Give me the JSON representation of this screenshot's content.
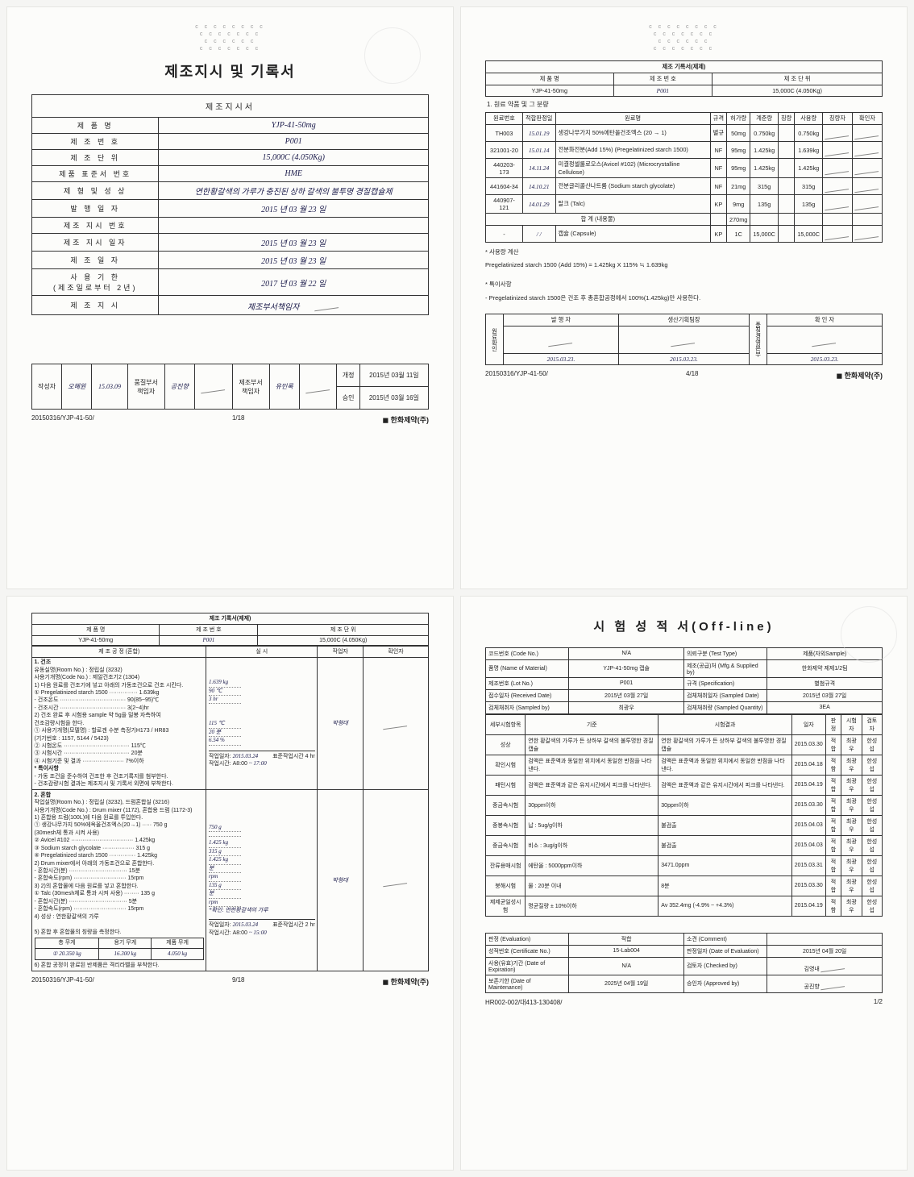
{
  "common": {
    "dots1": "c  c c c  c  c c c",
    "dots2": "c   c c c   c  c c",
    "dots3": "c   c   c c c  c",
    "brand": "한화제약(주)",
    "product": "YJP-41-50mg",
    "lot": "P001",
    "unit": "15,000C (4.050Kg)"
  },
  "p1": {
    "title": "제조지시 및 기록서",
    "inner_title": "제조지시서",
    "rows": [
      {
        "k": "제 품 명",
        "v": "YJP-41-50mg"
      },
      {
        "k": "제 조 번 호",
        "v": "P001"
      },
      {
        "k": "제 조 단 위",
        "v": "15,000C (4.050Kg)"
      },
      {
        "k": "제품 표준서 번호",
        "v": "HME"
      },
      {
        "k": "제 형 및 성 상",
        "v": "연한황갈색의 가루가 충진된 상하 갈색의 불투명 경질캡슐제"
      },
      {
        "k": "발 행 일 자",
        "v": "2015 년 03 월 23 일"
      },
      {
        "k": "제조 지시 번호",
        "v": ""
      },
      {
        "k": "제조 지시 일자",
        "v": "2015 년 03 월 23 일"
      },
      {
        "k": "제 조 일 자",
        "v": "2015 년 03 월 23 일"
      },
      {
        "k": "사 용 기 한\n(제조일로부터 2년)",
        "v": "2017 년 03 월 22 일"
      },
      {
        "k": "제 조 지 시",
        "v": "제조부서책임자"
      }
    ],
    "sig": {
      "작성자": "오혜원",
      "작성일": "15.03.09",
      "품질부서책임자": "공진향",
      "제조부서책임자": "유민록",
      "개정": "2015년 03월 11일",
      "승인": "2015년 03월 16일"
    },
    "footer_left": "20150316/YJP-41-50/",
    "page": "1/18"
  },
  "p2": {
    "title": "제조 기록서(제제)",
    "headers": [
      "제 품 명",
      "제 조 번 호",
      "제 조 단 위"
    ],
    "section": "1. 원료 약품 및 그 분량",
    "cols": [
      "원료번호",
      "적합판정일",
      "원료명",
      "규격",
      "허가량",
      "계준량",
      "칭량",
      "사용량",
      "칭량자",
      "확인자"
    ],
    "mats": [
      {
        "no": "TH003",
        "date": "15.01.19",
        "name": "생강나무가지 50%에탄올건조엑스 (20 → 1)",
        "spec": "별규",
        "allow": "50mg",
        "std": "0.750kg",
        "use": "0.750kg"
      },
      {
        "no": "321001-20",
        "date": "15.01.14",
        "name": "전분화전분(Add 15%) (Pregelatinized starch 1500)",
        "spec": "NF",
        "allow": "95mg",
        "std": "1.425kg",
        "use": "1.639kg"
      },
      {
        "no": "440203-173",
        "date": "14.11.24",
        "name": "미결정셀룰로오스(Avicel #102) (Microcrystalline Cellulose)",
        "spec": "NF",
        "allow": "95mg",
        "std": "1.425kg",
        "use": "1.425kg"
      },
      {
        "no": "441604-34",
        "date": "14.10.21",
        "name": "전분글리콜산나트륨 (Sodium starch glycolate)",
        "spec": "NF",
        "allow": "21mg",
        "std": "315g",
        "use": "315g"
      },
      {
        "no": "440907-121",
        "date": "14.01.29",
        "name": "탈크 (Talc)",
        "spec": "KP",
        "allow": "9mg",
        "std": "135g",
        "use": "135g"
      }
    ],
    "subtotal": {
      "label": "합 계 (내용물)",
      "amt": "270mg"
    },
    "capsule": {
      "no": "-",
      "date": "/   /",
      "name": "캡슐 (Capsule)",
      "spec": "KP",
      "allow": "1C",
      "std": "15,000C",
      "use": "15,000C"
    },
    "calc_title": "* 사용량 계산",
    "calc": "Pregelatinized starch 1500 (Add 15%) = 1.425kg X 115% ≒ 1.639kg",
    "note_title": "* 특이사항",
    "note": "- Pregelatinized starch 1500은 건조 후 총혼합공정에서 100%(1.425kg)만 사용한다.",
    "sigcols": [
      "발 행 자",
      "생산기획팀장",
      "",
      "확 인 자"
    ],
    "sigside": "원료확인",
    "sigsubside": "품질경영본부",
    "dates": [
      "2015.03.23.",
      "2015.03.23.",
      "",
      "2015.03.23."
    ],
    "footer_left": "20150316/YJP-41-50/",
    "page": "4/18"
  },
  "p3": {
    "title": "제조 기록서(제제)",
    "headers": [
      "제 품 명",
      "제 조 번 호",
      "제 조 단 위"
    ],
    "process_title": "제 조 공 정 (혼합)",
    "cols2": [
      "실 시",
      "작업자",
      "확인자"
    ],
    "sec1_title": "1. 건조",
    "sec1_body": "유동실명(Room No.) : 정립실 (3232)\n사용기개명(Code No.) : 제알건조기2 (1304)\n1) 다음 원료를 건조기에 넣고 아래의 가동조건으로 건조 시킨다.",
    "sec1_lines": [
      {
        "l": "① Pregelatinized starch 1500 ···············",
        "v": "1.639kg",
        "r": "1.639 kg"
      },
      {
        "l": "- 건조온도 ···································",
        "v": "90(85~95)℃",
        "r": "90 ℃"
      },
      {
        "l": "- 건조시간 ···································",
        "v": "3(2~4)hr",
        "r": "3 hr"
      }
    ],
    "sec1_after": "2) 건조 완료 후 시험용 sample 약 5g을 밀봉 자측하여\n건조감량시험을 한다.",
    "sec1_dev": "① 사용기개명(모델명) : 할로겐 수분 측정기H173 / HR83\n                (기기번호 : 1157, 5144 / 5423)",
    "sec1_cond": [
      {
        "l": "② 시험온도 ···································",
        "v": "115℃",
        "r": "115 ℃"
      },
      {
        "l": "③ 시험시간 ···································",
        "v": "20분",
        "r": "20 분"
      },
      {
        "l": "④ 시험기준 및 결과 ······················",
        "v": "7%이하",
        "r": "6.54 %"
      }
    ],
    "sec1_note_title": "* 특이사항",
    "sec1_note": "- 가동 조건을 준수하여 건조한 후 건조기록지를 첨부한다.\n- 건조감량시험 결과는 제조지시 및 기록서 외면에 부착한다.",
    "sec1_box": {
      "label1": "작업일자:",
      "v1": "2015.03.24",
      "label2": "작업시간: A8:00",
      "label3": "표준작업시간",
      "v3": "4 hr",
      "label4": "~ 17:00"
    },
    "sec2_title": "2. 혼합",
    "sec2_body": "작업실명(Room No.) : 정립실 (3232), 드럼혼합실 (3216)\n사용기개명(Code No.) : Drum mixer (1172), 혼합용 드럼 (1172-3)\n1) 혼합용 드럼(100L)에 다음 원료를 투입한다.",
    "sec2_lines": [
      {
        "l": "① 생강나무가지 50%에옥올건조엑스(20→1) ·····",
        "v": "750 g",
        "r": "750 g"
      },
      {
        "l": "  (30mesh체 통과 시켜 사용)",
        "v": "",
        "r": ""
      },
      {
        "l": "② Avicel #102 ·································",
        "v": "1.425kg",
        "r": "1.425 kg"
      },
      {
        "l": "③ Sodium starch glycolate ·················",
        "v": "315 g",
        "r": "315 g"
      },
      {
        "l": "④ Pregelatinized starch 1500 ··············",
        "v": "1.425kg",
        "r": "1.425 kg"
      }
    ],
    "sec2_body2": "2) Drum mixer에서 아래의 가동조건으로 혼합한다.",
    "sec2_cond": [
      {
        "l": "- 혼합시간(분) ·······························",
        "v": "15분",
        "r": "분"
      },
      {
        "l": "- 혼합속도(rpm) ····························",
        "v": "15rpm",
        "r": "rpm"
      }
    ],
    "sec2_body3": "3) 2)의 혼합물에 다음 원료를 넣고 혼합한다.",
    "sec2_lines3": [
      {
        "l": "① Talc (30mesh체로 통과 시켜 사용) ········",
        "v": "135 g",
        "r": "135 g"
      },
      {
        "l": "- 혼합시간(분) ·······························",
        "v": "5분",
        "r": "분"
      },
      {
        "l": "- 혼합속도(rpm) ····························",
        "v": "15rpm",
        "r": "rpm"
      }
    ],
    "sec2_sung": "4) 성상 : 연한황갈색의 가루",
    "sec2_check": "*확인: 연한황갈색의 가루",
    "sec2_weight_title": "5) 혼합 후 혼합물의 칭량을 측정한다.",
    "sec2_weight_cols": [
      "총 무게",
      "용기 무게",
      "제품 무게"
    ],
    "sec2_weight_vals": [
      "20.350 kg",
      "16.300 kg",
      "4.050 kg"
    ],
    "sec2_last": "6) 혼합 공정이 완료된 반제품은 격리라벨을 부착한다.",
    "sec2_box": {
      "label1": "작업일자:",
      "v1": "2015.03.24",
      "label2": "작업시간: A8:00",
      "label3": "표준작업시간",
      "v3": "2 hr",
      "label4": "~ 15:00"
    },
    "footer_left": "20150316/YJP-41-50/",
    "page": "9/18"
  },
  "p4": {
    "title": "시 험 성 적 서(Off-line)",
    "rows1": [
      {
        "k": "코드번호 (Code No.)",
        "v": "N/A",
        "k2": "의뢰구분 (Test Type)",
        "v2": "제품(자외Sample)"
      },
      {
        "k": "품명 (Name of Material)",
        "v": "YJP-41-50mg 캡슐",
        "k2": "제조(공급)처 (Mfg.& Supplied by)",
        "v2": "한화제약 제제1/2팀"
      },
      {
        "k": "제조번호 (Lot No.)",
        "v": "P001",
        "k2": "규격 (Specification)",
        "v2": "별첨규격"
      },
      {
        "k": "접수일자 (Received Date)",
        "v": "2015년 03월 27일",
        "k2": "검체채취일자 (Sampled Date)",
        "v2": "2015년 03월 27일"
      },
      {
        "k": "검체채취자 (Sampled by)",
        "v": "최광우",
        "k2": "검체채취량 (Sampled Quantity)",
        "v2": "3EA"
      }
    ],
    "cols": [
      "세부시험항목",
      "기준",
      "시험결과",
      "일자",
      "판정",
      "시험자",
      "검토자"
    ],
    "tests": [
      {
        "n": "성상",
        "std": "연한 황갈색의 가루가 든 상하부 갈색의 불투명한 경질캡슐",
        "res": "연한 황갈색의 가루가 든 상하부 갈색의 불투명한 경질캡슐",
        "d": "2015.03.30",
        "p": "적합",
        "a": "최광우",
        "b": "한성섭"
      },
      {
        "n": "확인시험",
        "std": "검액은 표준액과 동일한 위치에서 동일한 반점을 나타낸다.",
        "res": "검액은 표준액과 동일한 위치에서 동일한 반점을 나타낸다.",
        "d": "2015.04.18",
        "p": "적함",
        "a": "최광우",
        "b": "한성섭"
      },
      {
        "n": "패턴시험",
        "std": "검액은 표준액과 같은 유지시간에서 피크를 나타낸다.",
        "res": "검액은 표준액과 같은 유지시간에서 피크를 나타낸다.",
        "d": "2015.04.19",
        "p": "적합",
        "a": "최광우",
        "b": "한성섭"
      },
      {
        "n": "중금속시험",
        "std": "30ppm이하",
        "res": "30ppm이하",
        "d": "2015.03.30",
        "p": "적합",
        "a": "최광우",
        "b": "한성섭"
      },
      {
        "n": "중봉속시험",
        "std": "납 : 5ug/g이하",
        "res": "불검출",
        "d": "2015.04.03",
        "p": "적합",
        "a": "최광우",
        "b": "한성섭"
      },
      {
        "n": "중금속시험",
        "std": "비소 : 3ug/g이하",
        "res": "불검출",
        "d": "2015.04.03",
        "p": "적합",
        "a": "최광우",
        "b": "한성섭"
      },
      {
        "n": "잔류용매시험",
        "std": "에탄올 : 5000ppm이하",
        "res": "3471.0ppm",
        "d": "2015.03.31",
        "p": "적합",
        "a": "최광우",
        "b": "한성섭"
      },
      {
        "n": "붕해시험",
        "std": "물 : 20분 이내",
        "res": "8분",
        "d": "2015.03.30",
        "p": "적합",
        "a": "최광우",
        "b": "한성섭"
      },
      {
        "n": "제제균일성시험",
        "std": "명균질량 ± 10%이하",
        "res": "Av 352.4mg (-4.9% ~ +4.3%)",
        "d": "2015.04.19",
        "p": "적함",
        "a": "최광우",
        "b": "한성섭"
      }
    ],
    "bottom": [
      {
        "k": "판정 (Evaluation)",
        "v": "적합",
        "k2": "소견 (Comment)",
        "v2": ""
      },
      {
        "k": "성적번호 (Certificate No.)",
        "v": "15-Lab004",
        "k2": "판정일자 (Date of Evaluation)",
        "v2": "2015년 04월 20일"
      },
      {
        "k": "사용(유효)기간 (Date of Expiration)",
        "v": "N/A",
        "k2": "검토자 (Checked by)",
        "v2": "김영내"
      },
      {
        "k": "보존기한 (Date of Maintenance)",
        "v": "2025년 04월 19일",
        "k2": "승인자 (Approved by)",
        "v2": "공진향"
      }
    ],
    "footer_left": "HR002-002/대413-130408/",
    "page": "1/2"
  }
}
